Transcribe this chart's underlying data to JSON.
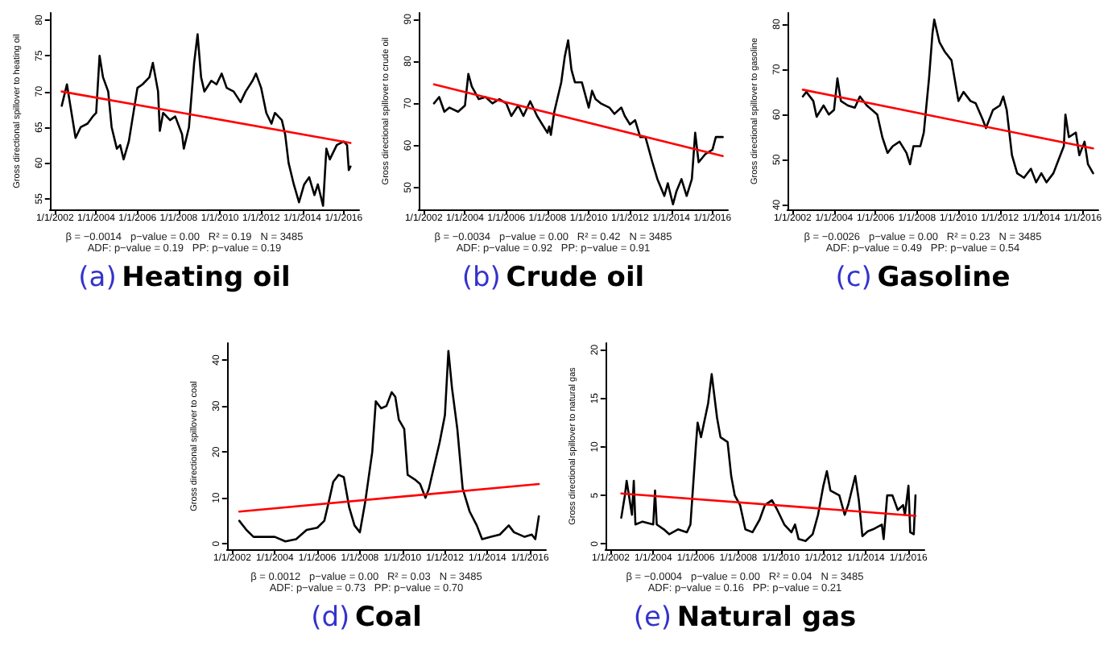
{
  "chart_data": [
    {
      "type": "line",
      "title": "(a) Heating oil",
      "ylabel": "Gross directional spillover to heating oil",
      "marker": "none",
      "line_style": "solid",
      "xlim": [
        "2001-10",
        "2016-10"
      ],
      "ylim": [
        53.5,
        81
      ],
      "yticks": [
        55,
        60,
        65,
        70,
        75,
        80
      ],
      "xticks": [
        {
          "value": "2002-01",
          "label": "1/1/2002"
        },
        {
          "value": "2004-01",
          "label": "1/1/2004"
        },
        {
          "value": "2006-01",
          "label": "1/1/2006"
        },
        {
          "value": "2008-01",
          "label": "1/1/2008"
        },
        {
          "value": "2010-01",
          "label": "1/1/2010"
        },
        {
          "value": "2012-01",
          "label": "1/1/2012"
        },
        {
          "value": "2014-01",
          "label": "1/1/2014"
        },
        {
          "value": "2016-01",
          "label": "1/1/2016"
        }
      ],
      "annotations": [
        "β = −0.0014   p−value = 0.00   R² = 0.19   N = 3485",
        "ADF: p−value = 0.19   PP: p−value = 0.19"
      ],
      "series": [
        {
          "color": "#000000",
          "x": [
            "2002-05",
            "2002-08",
            "2002-10",
            "2003-01",
            "2003-04",
            "2003-08",
            "2003-11",
            "2004-01",
            "2004-03",
            "2004-05",
            "2004-08",
            "2004-10",
            "2005-01",
            "2005-03",
            "2005-05",
            "2005-08",
            "2005-10",
            "2006-01",
            "2006-04",
            "2006-08",
            "2006-10",
            "2007-01",
            "2007-02",
            "2007-04",
            "2007-08",
            "2007-11",
            "2008-03",
            "2008-04",
            "2008-07",
            "2008-10",
            "2008-12",
            "2009-02",
            "2009-04",
            "2009-08",
            "2009-11",
            "2010-02",
            "2010-05",
            "2010-09",
            "2011-01",
            "2011-04",
            "2011-08",
            "2011-10",
            "2012-01",
            "2012-04",
            "2012-07",
            "2012-09",
            "2013-01",
            "2013-03",
            "2013-05",
            "2013-08",
            "2013-11",
            "2014-02",
            "2014-05",
            "2014-08",
            "2014-10",
            "2015-01",
            "2015-03",
            "2015-05",
            "2015-09",
            "2016-01",
            "2016-03",
            "2016-04",
            "2016-05"
          ],
          "values": [
            68,
            71,
            68,
            63.5,
            65,
            65.5,
            66.5,
            67,
            75,
            72,
            70,
            65,
            62,
            62.5,
            60.5,
            63,
            66,
            70.5,
            71,
            72,
            74,
            70,
            64.5,
            67,
            66,
            66.5,
            64,
            62,
            65,
            74,
            78,
            72,
            70,
            71.5,
            71,
            72.5,
            70.5,
            70,
            68.5,
            70,
            71.5,
            72.5,
            70.5,
            67,
            65.5,
            67,
            66,
            64,
            60,
            57,
            54.5,
            57,
            58,
            55.5,
            57,
            54,
            62,
            60.5,
            62.5,
            63,
            62.5,
            59,
            59.5
          ]
        },
        {
          "color": "#ff0000",
          "x": [
            "2002-05",
            "2016-05"
          ],
          "values": [
            70,
            62.8
          ]
        }
      ]
    },
    {
      "type": "line",
      "title": "(b) Crude oil",
      "ylabel": "Gross directional spillover to crude oil",
      "marker": "none",
      "line_style": "solid",
      "xlim": [
        "2001-10",
        "2016-10"
      ],
      "ylim": [
        44.8,
        91.5
      ],
      "yticks": [
        50,
        60,
        70,
        80,
        90
      ],
      "xticks": [
        {
          "value": "2002-01",
          "label": "1/1/2002"
        },
        {
          "value": "2004-01",
          "label": "1/1/2004"
        },
        {
          "value": "2006-01",
          "label": "1/1/2006"
        },
        {
          "value": "2008-01",
          "label": "1/1/2008"
        },
        {
          "value": "2010-01",
          "label": "1/1/2010"
        },
        {
          "value": "2012-01",
          "label": "1/1/2012"
        },
        {
          "value": "2014-01",
          "label": "1/1/2014"
        },
        {
          "value": "2016-01",
          "label": "1/1/2016"
        }
      ],
      "annotations": [
        "β = −0.0034   p−value = 0.00   R² = 0.42   N = 3485",
        "ADF: p−value = 0.92   PP: p−value = 0.91"
      ],
      "series": [
        {
          "color": "#000000",
          "x": [
            "2002-07",
            "2002-10",
            "2003-01",
            "2003-04",
            "2003-09",
            "2004-01",
            "2004-03",
            "2004-05",
            "2004-09",
            "2005-01",
            "2005-05",
            "2005-09",
            "2006-01",
            "2006-04",
            "2006-08",
            "2006-11",
            "2007-03",
            "2007-07",
            "2007-10",
            "2008-01",
            "2008-02",
            "2008-03",
            "2008-05",
            "2008-09",
            "2008-11",
            "2009-01",
            "2009-03",
            "2009-05",
            "2009-09",
            "2010-01",
            "2010-03",
            "2010-05",
            "2010-08",
            "2011-01",
            "2011-04",
            "2011-08",
            "2011-10",
            "2012-01",
            "2012-04",
            "2012-07",
            "2012-10",
            "2013-02",
            "2013-05",
            "2013-09",
            "2013-11",
            "2014-02",
            "2014-04",
            "2014-07",
            "2014-10",
            "2015-01",
            "2015-03",
            "2015-05",
            "2015-09",
            "2016-01",
            "2016-03",
            "2016-07"
          ],
          "values": [
            70,
            71.5,
            68,
            69,
            68,
            69.5,
            77,
            74,
            71,
            71.5,
            70,
            71,
            70,
            67,
            69.5,
            67,
            70.5,
            67,
            65,
            63,
            64.5,
            62.5,
            68,
            75,
            81,
            85,
            78,
            75,
            75,
            69,
            73,
            71,
            70,
            69,
            67.5,
            69,
            67,
            65,
            66,
            62,
            62,
            56,
            52,
            48,
            51,
            46,
            49,
            52,
            48,
            52,
            63,
            56,
            58,
            59,
            62,
            62
          ]
        },
        {
          "color": "#ff0000",
          "x": [
            "2002-07",
            "2016-07"
          ],
          "values": [
            74.5,
            57.5
          ]
        }
      ]
    },
    {
      "type": "line",
      "title": "(c) Gasoline",
      "ylabel": "Gross directional spillover to gasoline",
      "marker": "none",
      "line_style": "solid",
      "xlim": [
        "2001-10",
        "2016-10"
      ],
      "ylim": [
        39,
        82.5
      ],
      "yticks": [
        40,
        50,
        60,
        70,
        80
      ],
      "xticks": [
        {
          "value": "2002-01",
          "label": "1/1/2002"
        },
        {
          "value": "2004-01",
          "label": "1/1/2004"
        },
        {
          "value": "2006-01",
          "label": "1/1/2006"
        },
        {
          "value": "2008-01",
          "label": "1/1/2008"
        },
        {
          "value": "2010-01",
          "label": "1/1/2010"
        },
        {
          "value": "2012-01",
          "label": "1/1/2012"
        },
        {
          "value": "2014-01",
          "label": "1/1/2014"
        },
        {
          "value": "2016-01",
          "label": "1/1/2016"
        }
      ],
      "annotations": [
        "β = −0.0026   p−value = 0.00   R² = 0.23   N = 3485",
        "ADF: p−value = 0.49   PP: p−value = 0.54"
      ],
      "series": [
        {
          "color": "#000000",
          "x": [
            "2002-07",
            "2002-09",
            "2003-01",
            "2003-03",
            "2003-07",
            "2003-10",
            "2004-01",
            "2004-03",
            "2004-05",
            "2004-09",
            "2005-01",
            "2005-04",
            "2005-08",
            "2005-11",
            "2006-02",
            "2006-05",
            "2006-08",
            "2006-11",
            "2007-03",
            "2007-07",
            "2007-09",
            "2007-11",
            "2008-03",
            "2008-05",
            "2008-08",
            "2008-10",
            "2008-11",
            "2009-02",
            "2009-05",
            "2009-09",
            "2010-01",
            "2010-04",
            "2010-08",
            "2010-11",
            "2011-03",
            "2011-05",
            "2011-09",
            "2012-01",
            "2012-03",
            "2012-05",
            "2012-08",
            "2012-11",
            "2013-03",
            "2013-07",
            "2013-10",
            "2014-01",
            "2014-04",
            "2014-08",
            "2014-11",
            "2015-02",
            "2015-03",
            "2015-05",
            "2015-09",
            "2015-11",
            "2016-02",
            "2016-04",
            "2016-07"
          ],
          "values": [
            64,
            65,
            63,
            59.5,
            62,
            60,
            61,
            68,
            63,
            62,
            61.5,
            64,
            62,
            61,
            60,
            55,
            51.5,
            53,
            54,
            51.5,
            49,
            53,
            53,
            56,
            68,
            78,
            81,
            76,
            74,
            72,
            63,
            65,
            63,
            62.5,
            59,
            57,
            61,
            62,
            64,
            61,
            51,
            47,
            46,
            48,
            45,
            47,
            45,
            47,
            50,
            53,
            60,
            55,
            56,
            51,
            54,
            49,
            47
          ]
        },
        {
          "color": "#ff0000",
          "x": [
            "2002-07",
            "2016-07"
          ],
          "values": [
            65.5,
            52.5
          ]
        }
      ]
    },
    {
      "type": "line",
      "title": "(d) Coal",
      "ylabel": "Gross directional spillover to coal",
      "marker": "none",
      "line_style": "solid",
      "xlim": [
        "2001-10",
        "2016-10"
      ],
      "ylim": [
        -1.2,
        43.7
      ],
      "yticks": [
        0,
        10,
        20,
        30,
        40
      ],
      "xticks": [
        {
          "value": "2002-01",
          "label": "1/1/2002"
        },
        {
          "value": "2004-01",
          "label": "1/1/2004"
        },
        {
          "value": "2006-01",
          "label": "1/1/2006"
        },
        {
          "value": "2008-01",
          "label": "1/1/2008"
        },
        {
          "value": "2010-01",
          "label": "1/1/2010"
        },
        {
          "value": "2012-01",
          "label": "1/1/2012"
        },
        {
          "value": "2014-01",
          "label": "1/1/2014"
        },
        {
          "value": "2016-01",
          "label": "1/1/2016"
        }
      ],
      "annotations": [
        "β = 0.0012   p−value = 0.00   R² = 0.03   N = 3485",
        "ADF: p−value = 0.73   PP: p−value = 0.70"
      ],
      "series": [
        {
          "color": "#000000",
          "x": [
            "2002-05",
            "2002-09",
            "2003-01",
            "2003-07",
            "2004-01",
            "2004-07",
            "2005-01",
            "2005-07",
            "2006-01",
            "2006-05",
            "2006-08",
            "2006-10",
            "2007-01",
            "2007-04",
            "2007-07",
            "2007-10",
            "2008-01",
            "2008-04",
            "2008-08",
            "2008-10",
            "2009-01",
            "2009-04",
            "2009-07",
            "2009-09",
            "2009-11",
            "2010-02",
            "2010-04",
            "2010-08",
            "2010-11",
            "2011-02",
            "2011-04",
            "2011-07",
            "2011-10",
            "2012-01",
            "2012-03",
            "2012-05",
            "2012-08",
            "2012-11",
            "2013-03",
            "2013-07",
            "2013-10",
            "2014-03",
            "2014-08",
            "2015-01",
            "2015-04",
            "2015-10",
            "2016-02",
            "2016-04",
            "2016-06"
          ],
          "values": [
            5,
            3,
            1.5,
            1.5,
            1.5,
            0.5,
            1,
            3,
            3.5,
            5,
            10,
            13.5,
            15,
            14.5,
            8,
            4,
            2.5,
            9,
            20,
            31,
            29.5,
            30,
            33,
            32,
            27,
            25,
            15,
            14,
            13,
            10,
            12,
            17,
            22,
            28,
            42,
            34,
            25,
            12,
            7,
            4,
            1,
            1.5,
            2,
            4,
            2.5,
            1.5,
            2,
            1,
            6
          ]
        },
        {
          "color": "#ff0000",
          "x": [
            "2002-05",
            "2016-06"
          ],
          "values": [
            7,
            13
          ]
        }
      ]
    },
    {
      "type": "line",
      "title": "(e) Natural gas",
      "ylabel": "Gross directional spillover to natural gas",
      "marker": "none",
      "line_style": "solid",
      "xlim": [
        "2001-10",
        "2016-10"
      ],
      "ylim": [
        -0.55,
        20.7
      ],
      "yticks": [
        0,
        5,
        10,
        15,
        20
      ],
      "xticks": [
        {
          "value": "2002-01",
          "label": "1/1/2002"
        },
        {
          "value": "2004-01",
          "label": "1/1/2004"
        },
        {
          "value": "2006-01",
          "label": "1/1/2006"
        },
        {
          "value": "2008-01",
          "label": "1/1/2008"
        },
        {
          "value": "2010-01",
          "label": "1/1/2010"
        },
        {
          "value": "2012-01",
          "label": "1/1/2012"
        },
        {
          "value": "2014-01",
          "label": "1/1/2014"
        },
        {
          "value": "2016-01",
          "label": "1/1/2016"
        }
      ],
      "annotations": [
        "β = −0.0004   p−value = 0.00   R² = 0.04   N = 3485",
        "ADF: p−value = 0.16   PP: p−value = 0.21"
      ],
      "series": [
        {
          "color": "#000000",
          "x": [
            "2002-07",
            "2002-09",
            "2002-10",
            "2003-01",
            "2003-02",
            "2003-03",
            "2003-07",
            "2004-01",
            "2004-02",
            "2004-03",
            "2004-07",
            "2004-10",
            "2005-03",
            "2005-08",
            "2005-10",
            "2006-01",
            "2006-02",
            "2006-04",
            "2006-08",
            "2006-10",
            "2007-01",
            "2007-03",
            "2007-07",
            "2007-09",
            "2007-11",
            "2008-02",
            "2008-05",
            "2008-09",
            "2009-01",
            "2009-04",
            "2009-08",
            "2009-11",
            "2010-03",
            "2010-07",
            "2010-09",
            "2010-11",
            "2011-03",
            "2011-07",
            "2011-10",
            "2012-01",
            "2012-03",
            "2012-05",
            "2012-10",
            "2013-01",
            "2013-03",
            "2013-07",
            "2013-09",
            "2013-11",
            "2014-02",
            "2014-05",
            "2014-10",
            "2014-11",
            "2015-01",
            "2015-04",
            "2015-07",
            "2015-10",
            "2015-11",
            "2016-01",
            "2016-02",
            "2016-04",
            "2016-05"
          ],
          "values": [
            2.7,
            5,
            6.5,
            3,
            6.5,
            2,
            2.3,
            2,
            5.5,
            2,
            1.5,
            1,
            1.5,
            1.2,
            2,
            10,
            12.5,
            11,
            14.5,
            17.5,
            13,
            11,
            10.5,
            7,
            5,
            4,
            1.5,
            1.2,
            2.5,
            4,
            4.5,
            3.5,
            2,
            1.2,
            2,
            0.5,
            0.3,
            1,
            3,
            6,
            7.5,
            5.5,
            5,
            3,
            4,
            7,
            4.5,
            0.8,
            1.3,
            1.5,
            2,
            0.5,
            5,
            5,
            3.5,
            4,
            3,
            6,
            1.2,
            1,
            5
          ]
        },
        {
          "color": "#ff0000",
          "x": [
            "2002-07",
            "2016-05"
          ],
          "values": [
            5.2,
            2.9
          ]
        }
      ]
    }
  ]
}
